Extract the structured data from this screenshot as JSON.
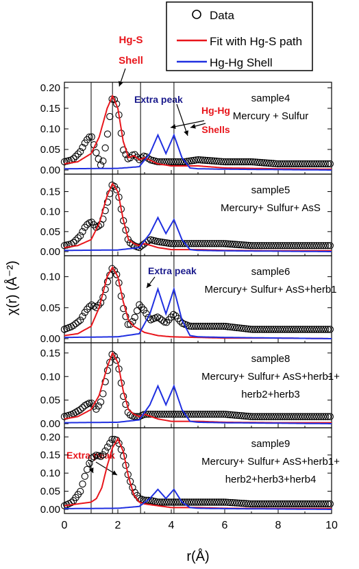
{
  "figure": {
    "ylabel": "χ(r) (Å⁻²)",
    "xlabel": "r(Å)"
  },
  "legend": {
    "data_label": "Data",
    "fit_label": "Fit with Hg-S path",
    "hghg_label": "Hg-Hg Shell"
  },
  "annotations": {
    "hgs_shell_line1": "Hg-S",
    "hgs_shell_line2": "Shell",
    "extra_peak": "Extra peak",
    "hghg_shells_line1": "Hg-Hg",
    "hghg_shells_line2": "Shells"
  },
  "colors": {
    "data": "#000000",
    "fit": "#e8151b",
    "hghg": "#1f2fe0",
    "annotation_red": "#e8151b",
    "annotation_blue": "#1a1a8c"
  },
  "chart_data": [
    {
      "type": "line",
      "panel_label": [
        "sample4",
        "Mercury + Sulfur"
      ],
      "xlim": [
        0,
        10
      ],
      "ylim": [
        0,
        0.2
      ],
      "yticks": [
        "0.00",
        "0.05",
        "0.10",
        "0.15",
        "0.20"
      ],
      "vlines": [
        1.0,
        1.8,
        2.85,
        4.1
      ],
      "series": [
        {
          "name": "Data",
          "style": "open-circles",
          "x": [
            0,
            0.3,
            0.6,
            0.8,
            1.0,
            1.2,
            1.4,
            1.6,
            1.8,
            2.0,
            2.2,
            2.4,
            2.6,
            2.8,
            3.0,
            3.2,
            3.5,
            4.0,
            4.5,
            5.0,
            6.0,
            7.0,
            8.0,
            9.0,
            10.0
          ],
          "y": [
            0.02,
            0.025,
            0.045,
            0.07,
            0.085,
            0.04,
            0.005,
            0.08,
            0.18,
            0.155,
            0.05,
            0.025,
            0.04,
            0.025,
            0.035,
            0.025,
            0.02,
            0.02,
            0.02,
            0.025,
            0.02,
            0.02,
            0.015,
            0.015,
            0.015
          ]
        },
        {
          "name": "Fit with Hg-S path",
          "x": [
            0,
            0.5,
            1.0,
            1.3,
            1.6,
            1.8,
            2.0,
            2.2,
            2.4,
            2.6,
            2.8,
            3.0,
            3.5,
            4.0,
            5.0,
            6.0,
            8.0,
            10.0
          ],
          "y": [
            0.015,
            0.02,
            0.04,
            0.08,
            0.15,
            0.18,
            0.15,
            0.07,
            0.03,
            0.035,
            0.025,
            0.03,
            0.015,
            0.01,
            0.01,
            0.005,
            0.003,
            0.002
          ]
        },
        {
          "name": "Hg-Hg Shell",
          "x": [
            0,
            2.0,
            2.8,
            3.2,
            3.5,
            3.8,
            4.1,
            4.4,
            4.7,
            5.0,
            6.0,
            8.0,
            10.0
          ],
          "y": [
            0.003,
            0.004,
            0.008,
            0.04,
            0.085,
            0.04,
            0.085,
            0.03,
            0.005,
            0.003,
            0.002,
            0.001,
            0.0
          ]
        }
      ]
    },
    {
      "type": "line",
      "panel_label": [
        "sample5",
        "Mercury+ Sulfur+ AsS"
      ],
      "xlim": [
        0,
        10
      ],
      "ylim": [
        0,
        0.18
      ],
      "yticks": [
        "0.00",
        "0.05",
        "0.10",
        "0.15"
      ],
      "vlines": [
        1.0,
        1.8,
        2.85,
        4.1
      ],
      "series": [
        {
          "name": "Data",
          "style": "open-circles",
          "x": [
            0,
            0.3,
            0.6,
            0.8,
            1.0,
            1.2,
            1.4,
            1.6,
            1.8,
            2.0,
            2.2,
            2.4,
            2.6,
            2.8,
            3.0,
            3.2,
            3.5,
            4.0,
            4.5,
            5.0,
            6.0,
            7.0,
            8.0,
            9.0,
            10.0
          ],
          "y": [
            0.015,
            0.02,
            0.04,
            0.065,
            0.075,
            0.06,
            0.07,
            0.12,
            0.17,
            0.15,
            0.08,
            0.025,
            0.015,
            0.01,
            0.02,
            0.03,
            0.025,
            0.02,
            0.02,
            0.02,
            0.02,
            0.015,
            0.015,
            0.015,
            0.015
          ]
        },
        {
          "name": "Fit with Hg-S path",
          "x": [
            0,
            0.5,
            1.0,
            1.3,
            1.6,
            1.8,
            2.0,
            2.2,
            2.4,
            2.6,
            2.8,
            3.0,
            3.5,
            4.0,
            5.0,
            6.0,
            8.0,
            10.0
          ],
          "y": [
            0.01,
            0.015,
            0.03,
            0.07,
            0.14,
            0.17,
            0.15,
            0.08,
            0.03,
            0.02,
            0.015,
            0.02,
            0.01,
            0.005,
            0.005,
            0.003,
            0.002,
            0.002
          ]
        },
        {
          "name": "Hg-Hg Shell",
          "x": [
            0,
            2.0,
            2.8,
            3.2,
            3.5,
            3.8,
            4.1,
            4.4,
            4.7,
            5.0,
            6.0,
            8.0,
            10.0
          ],
          "y": [
            0.003,
            0.004,
            0.01,
            0.045,
            0.085,
            0.045,
            0.08,
            0.03,
            0.005,
            0.003,
            0.002,
            0.001,
            0.0
          ]
        }
      ]
    },
    {
      "type": "line",
      "panel_label": [
        "sample6",
        "Mercury+ Sulfur+ AsS+herb1"
      ],
      "xlim": [
        0,
        10
      ],
      "ylim": [
        0,
        0.125
      ],
      "yticks": [
        "0.00",
        "0.05",
        "0.10"
      ],
      "vlines": [
        1.0,
        1.8,
        2.85,
        4.1
      ],
      "series": [
        {
          "name": "Data",
          "style": "open-circles",
          "x": [
            0,
            0.3,
            0.6,
            0.8,
            1.0,
            1.2,
            1.4,
            1.6,
            1.8,
            2.0,
            2.2,
            2.4,
            2.6,
            2.8,
            3.0,
            3.2,
            3.5,
            3.8,
            4.1,
            4.4,
            4.7,
            5.0,
            6.0,
            7.0,
            8.0,
            9.0,
            10.0
          ],
          "y": [
            0.015,
            0.02,
            0.03,
            0.045,
            0.055,
            0.05,
            0.06,
            0.09,
            0.115,
            0.1,
            0.05,
            0.02,
            0.03,
            0.055,
            0.045,
            0.03,
            0.035,
            0.025,
            0.04,
            0.025,
            0.02,
            0.02,
            0.02,
            0.015,
            0.015,
            0.015,
            0.015
          ]
        },
        {
          "name": "Fit with Hg-S path",
          "x": [
            0,
            0.5,
            1.0,
            1.3,
            1.6,
            1.8,
            2.0,
            2.2,
            2.4,
            2.6,
            2.8,
            3.0,
            3.5,
            4.0,
            5.0,
            6.0,
            8.0,
            10.0
          ],
          "y": [
            0.005,
            0.008,
            0.02,
            0.05,
            0.1,
            0.115,
            0.1,
            0.06,
            0.03,
            0.02,
            0.015,
            0.01,
            0.005,
            0.003,
            0.002,
            0.001,
            0.001,
            0.0
          ]
        },
        {
          "name": "Hg-Hg Shell",
          "x": [
            0,
            2.0,
            2.8,
            3.2,
            3.5,
            3.8,
            4.1,
            4.4,
            4.7,
            5.0,
            6.0,
            8.0,
            10.0
          ],
          "y": [
            0.002,
            0.003,
            0.008,
            0.04,
            0.08,
            0.04,
            0.08,
            0.03,
            0.005,
            0.003,
            0.002,
            0.001,
            0.0
          ]
        }
      ]
    },
    {
      "type": "line",
      "panel_label": [
        "sample8",
        "Mercury+ Sulfur+ AsS+herb1+",
        "herb2+herb3"
      ],
      "xlim": [
        0,
        10
      ],
      "ylim": [
        0,
        0.16
      ],
      "yticks": [
        "0.00",
        "0.05",
        "0.10",
        "0.15"
      ],
      "vlines": [
        1.0,
        1.8,
        2.85,
        4.1
      ],
      "series": [
        {
          "name": "Data",
          "style": "open-circles",
          "x": [
            0,
            0.3,
            0.6,
            0.8,
            1.0,
            1.2,
            1.4,
            1.6,
            1.8,
            2.0,
            2.2,
            2.4,
            2.6,
            2.8,
            3.0,
            3.2,
            3.5,
            4.0,
            4.5,
            5.0,
            6.0,
            7.0,
            8.0,
            9.0,
            10.0
          ],
          "y": [
            0.015,
            0.02,
            0.03,
            0.04,
            0.045,
            0.03,
            0.05,
            0.11,
            0.15,
            0.13,
            0.06,
            0.02,
            0.015,
            0.015,
            0.02,
            0.02,
            0.02,
            0.02,
            0.02,
            0.02,
            0.02,
            0.015,
            0.015,
            0.015,
            0.015
          ]
        },
        {
          "name": "Fit with Hg-S path",
          "x": [
            0,
            0.5,
            1.0,
            1.3,
            1.6,
            1.8,
            2.0,
            2.2,
            2.4,
            2.6,
            2.8,
            3.0,
            3.5,
            4.0,
            5.0,
            6.0,
            8.0,
            10.0
          ],
          "y": [
            0.01,
            0.015,
            0.03,
            0.06,
            0.12,
            0.15,
            0.13,
            0.07,
            0.03,
            0.02,
            0.015,
            0.02,
            0.01,
            0.005,
            0.005,
            0.003,
            0.002,
            0.002
          ]
        },
        {
          "name": "Hg-Hg Shell",
          "x": [
            0,
            2.0,
            2.8,
            3.2,
            3.5,
            3.8,
            4.1,
            4.4,
            4.7,
            5.0,
            6.0,
            8.0,
            10.0
          ],
          "y": [
            0.002,
            0.003,
            0.008,
            0.04,
            0.08,
            0.04,
            0.08,
            0.03,
            0.005,
            0.003,
            0.002,
            0.001,
            0.0
          ]
        }
      ]
    },
    {
      "type": "line",
      "panel_label": [
        "sample9",
        "Mercury+ Sulfur+ AsS+herb1+",
        "herb2+herb3+herb4"
      ],
      "xlim": [
        0,
        10
      ],
      "ylim": [
        0,
        0.21
      ],
      "yticks": [
        "0.00",
        "0.05",
        "0.10",
        "0.15",
        "0.20"
      ],
      "xticks": [
        "0",
        "2",
        "4",
        "6",
        "8",
        "10"
      ],
      "vlines": [
        1.0,
        1.8,
        2.85,
        4.1
      ],
      "series": [
        {
          "name": "Data",
          "style": "open-circles",
          "x": [
            0,
            0.3,
            0.6,
            0.8,
            1.0,
            1.2,
            1.4,
            1.6,
            1.8,
            2.0,
            2.2,
            2.4,
            2.6,
            2.8,
            3.0,
            3.2,
            3.5,
            4.0,
            4.5,
            5.0,
            6.0,
            7.0,
            8.0,
            9.0,
            10.0
          ],
          "y": [
            0.01,
            0.02,
            0.05,
            0.1,
            0.14,
            0.15,
            0.145,
            0.17,
            0.195,
            0.19,
            0.15,
            0.09,
            0.05,
            0.03,
            0.025,
            0.025,
            0.02,
            0.02,
            0.02,
            0.02,
            0.02,
            0.015,
            0.015,
            0.015,
            0.015
          ]
        },
        {
          "name": "Fit with Hg-S path",
          "x": [
            0,
            0.5,
            1.0,
            1.2,
            1.4,
            1.6,
            1.8,
            2.0,
            2.2,
            2.4,
            2.6,
            2.8,
            3.0,
            3.5,
            4.0,
            5.0,
            6.0,
            8.0,
            10.0
          ],
          "y": [
            0.01,
            0.015,
            0.02,
            0.03,
            0.06,
            0.12,
            0.17,
            0.195,
            0.16,
            0.09,
            0.04,
            0.02,
            0.015,
            0.01,
            0.005,
            0.005,
            0.003,
            0.002,
            0.002
          ]
        },
        {
          "name": "Hg-Hg Shell",
          "x": [
            0,
            2.0,
            2.8,
            3.2,
            3.5,
            3.8,
            4.1,
            4.4,
            4.7,
            5.0,
            6.0,
            8.0,
            10.0
          ],
          "y": [
            0.002,
            0.003,
            0.008,
            0.03,
            0.055,
            0.03,
            0.055,
            0.02,
            0.005,
            0.003,
            0.002,
            0.001,
            0.0
          ]
        }
      ]
    }
  ]
}
